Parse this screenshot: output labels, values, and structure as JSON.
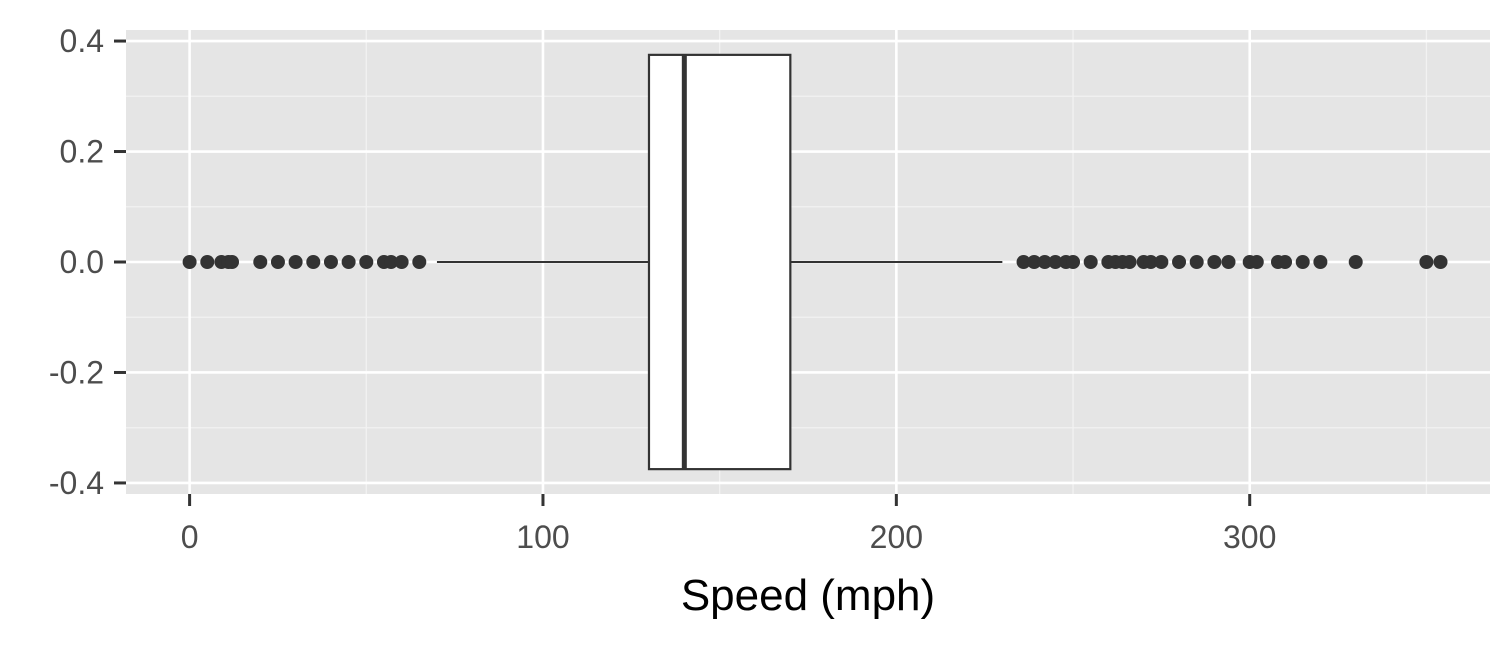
{
  "chart_data": {
    "type": "boxplot",
    "title": "",
    "xlabel": "Speed (mph)",
    "ylabel": "",
    "xlim": [
      -18,
      368
    ],
    "ylim": [
      -0.42,
      0.42
    ],
    "x_ticks": [
      0,
      100,
      200,
      300
    ],
    "x_tick_labels": [
      "0",
      "100",
      "200",
      "300"
    ],
    "y_ticks": [
      0.4,
      0.2,
      0.0,
      -0.2,
      -0.4
    ],
    "y_tick_labels": [
      "0.4",
      "0.2",
      "0.0",
      "-0.2",
      "-0.4"
    ],
    "grid": true,
    "legend": "none",
    "orientation": "horizontal",
    "box": {
      "q1": 130,
      "median": 140,
      "q3": 170,
      "whisker_low": 70,
      "whisker_high": 230,
      "y_low": -0.375,
      "y_high": 0.375,
      "y_center": 0.0
    },
    "outliers": [
      0,
      5,
      9,
      11,
      12,
      20,
      25,
      30,
      35,
      40,
      45,
      50,
      55,
      57,
      60,
      65,
      236,
      239,
      242,
      245,
      248,
      250,
      255,
      260,
      262,
      264,
      266,
      270,
      272,
      275,
      280,
      285,
      290,
      294,
      300,
      302,
      308,
      310,
      315,
      320,
      330,
      350,
      354
    ],
    "colors": {
      "panel_background": "#e5e5e5",
      "grid_major": "#ffffff",
      "grid_minor": "#f2f2f2",
      "box_fill": "#ffffff",
      "box_line": "#333333",
      "point": "#333333",
      "tick_text": "#4d4d4d",
      "axis_title": "#000000"
    }
  }
}
